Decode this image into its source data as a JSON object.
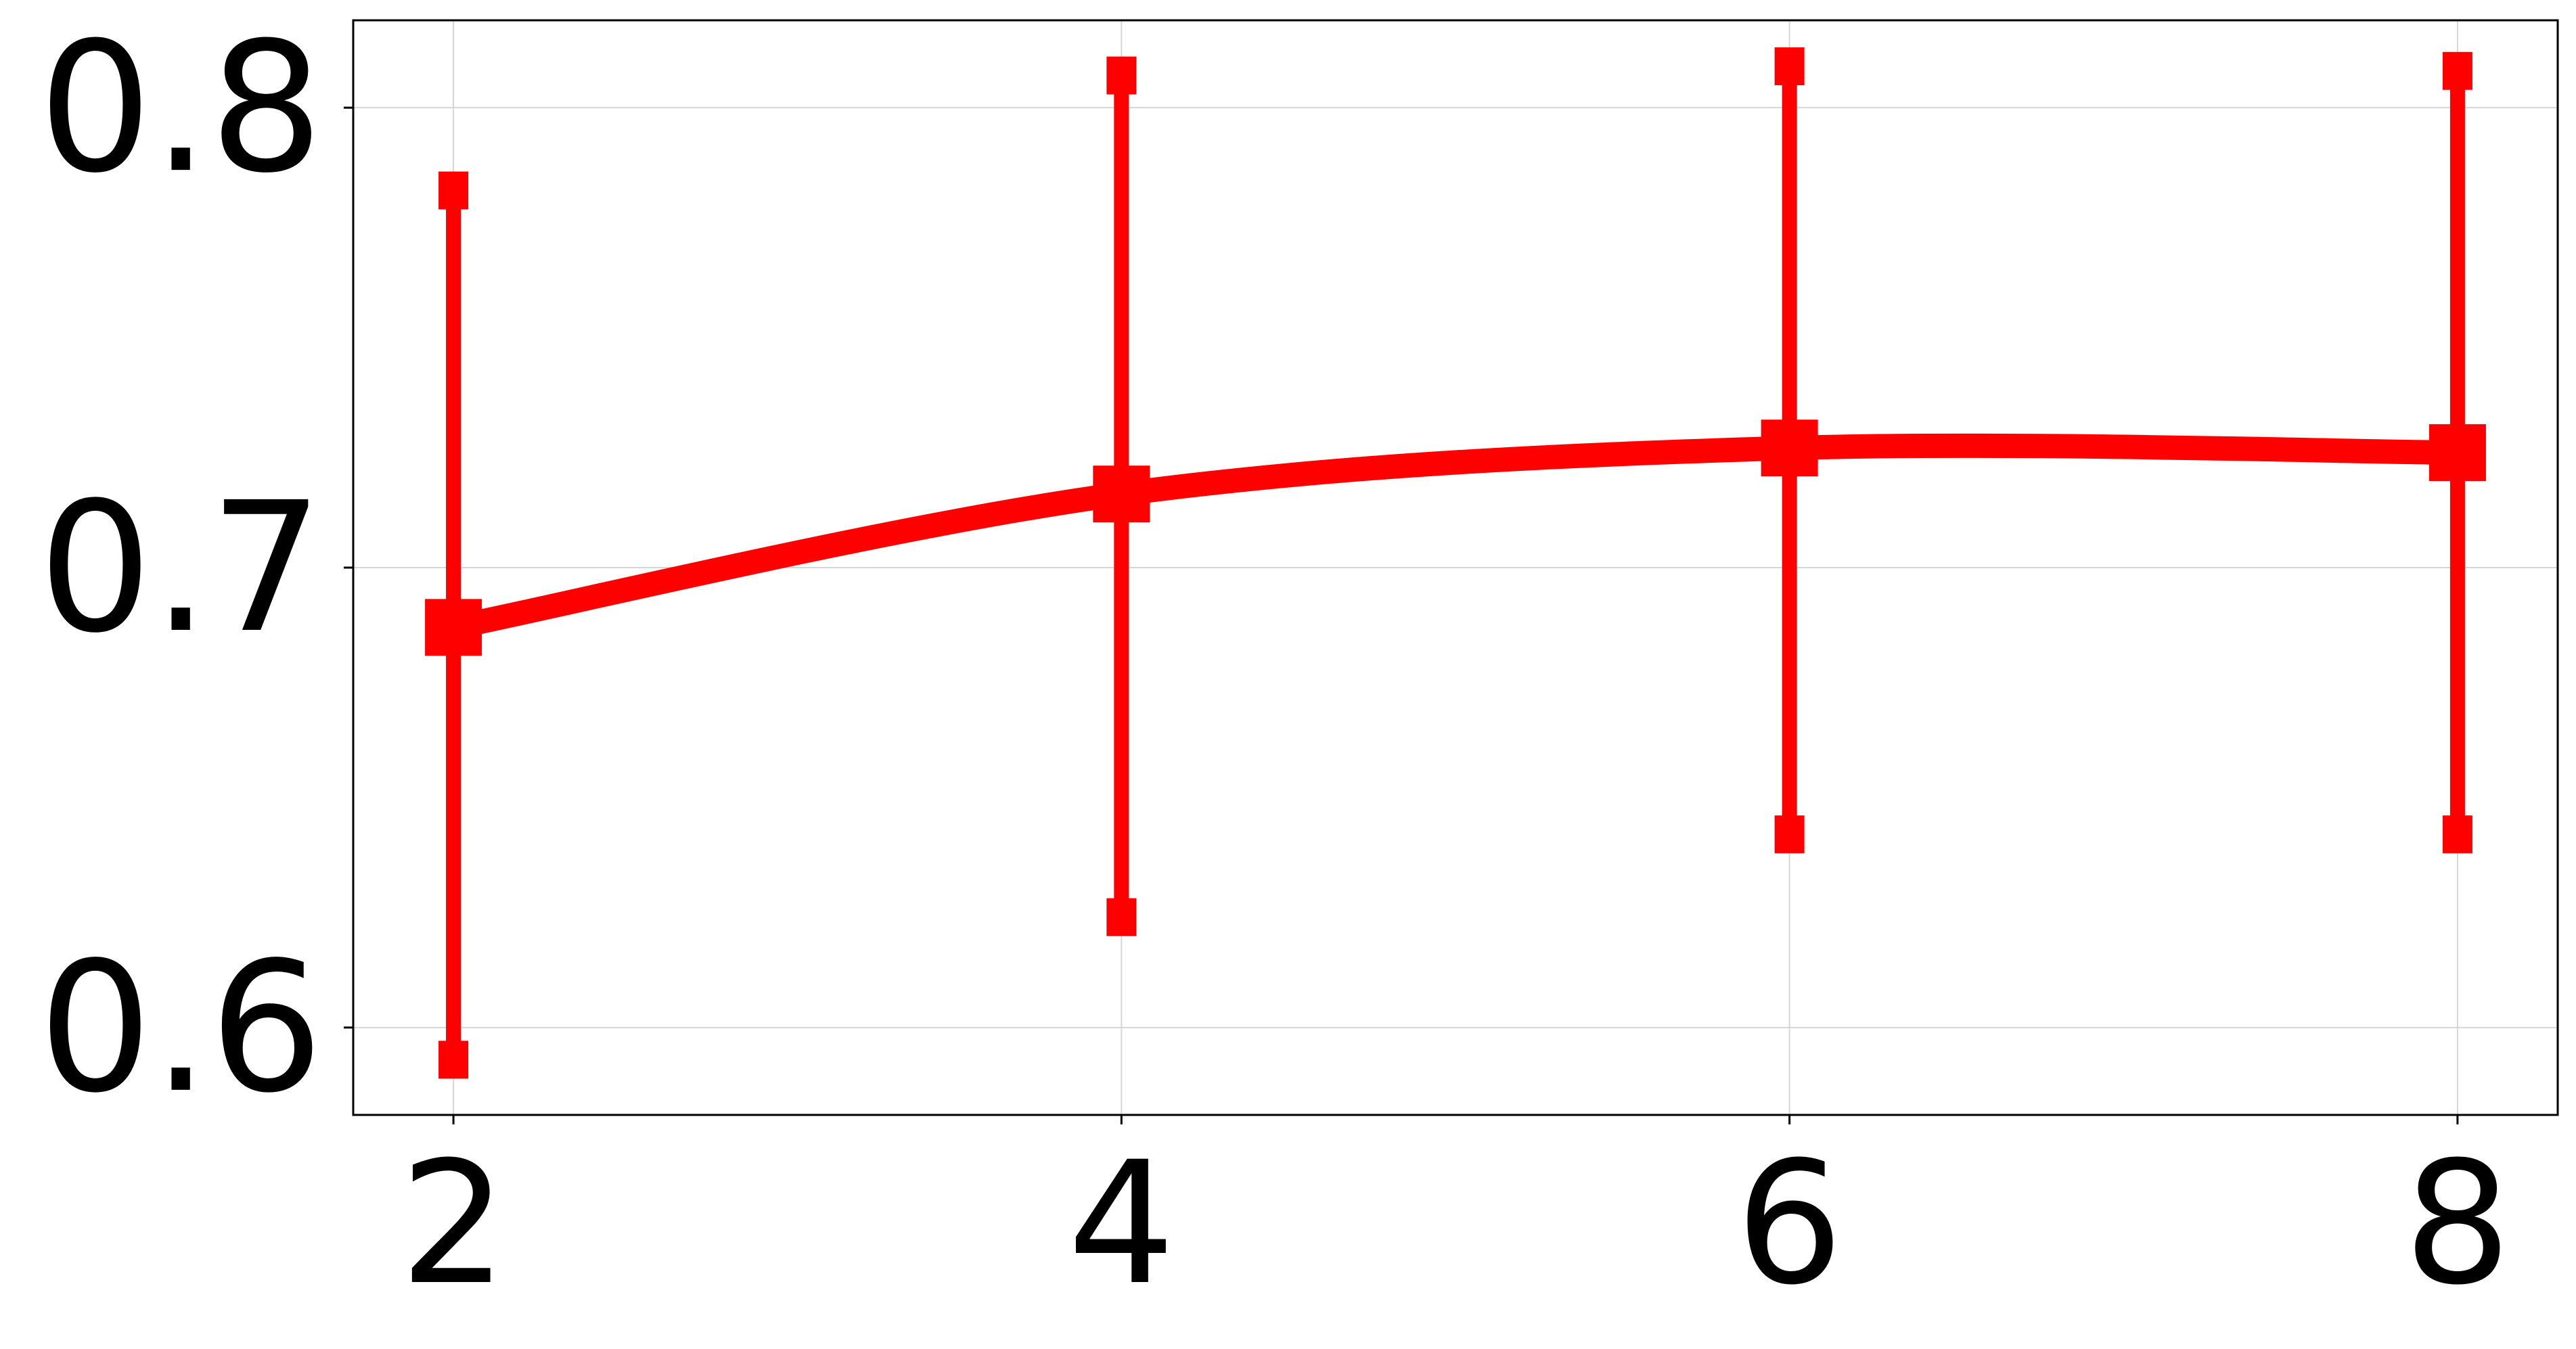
{
  "chart_data": {
    "type": "line",
    "title": "",
    "xlabel": "",
    "ylabel": "",
    "x": [
      2,
      4,
      6,
      8
    ],
    "xlim": [
      1.7,
      8.3
    ],
    "ylim": [
      0.581,
      0.819
    ],
    "x_ticks": [
      {
        "value": 2,
        "label": "2"
      },
      {
        "value": 4,
        "label": "4"
      },
      {
        "value": 6,
        "label": "6"
      },
      {
        "value": 8,
        "label": "8"
      }
    ],
    "y_ticks": [
      {
        "value": 0.6,
        "label": "0.6"
      },
      {
        "value": 0.7,
        "label": "0.7"
      },
      {
        "value": 0.8,
        "label": "0.8"
      }
    ],
    "grid": true,
    "smooth": true,
    "series": [
      {
        "color": "#ff0000",
        "marker": "square",
        "values": [
          0.687,
          0.716,
          0.726,
          0.725
        ],
        "error_low": [
          0.593,
          0.624,
          0.642,
          0.642
        ],
        "error_high": [
          0.782,
          0.807,
          0.809,
          0.808
        ]
      }
    ]
  }
}
